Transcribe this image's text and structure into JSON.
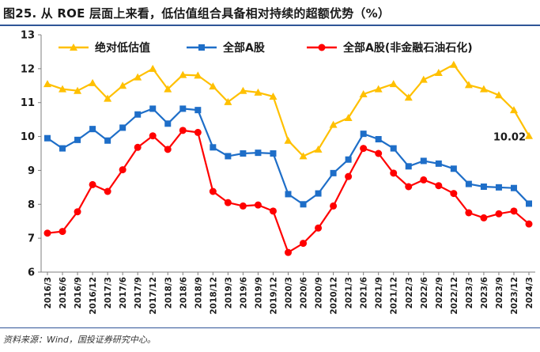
{
  "title": "图25. 从 ROE 层面上来看，低估值组合具备相对持续的超额优势（%）",
  "source": "资料来源：Wind，国投证券研究中心。",
  "chart_data": {
    "type": "line",
    "ylim": [
      6,
      13
    ],
    "yticks": [
      "6",
      "7",
      "8",
      "9",
      "10",
      "11",
      "12",
      "13"
    ],
    "categories": [
      "2016/3",
      "2016/6",
      "2016/9",
      "2016/12",
      "2017/3",
      "2017/6",
      "2017/9",
      "2017/12",
      "2018/3",
      "2018/6",
      "2018/9",
      "2018/12",
      "2019/3",
      "2019/6",
      "2019/9",
      "2019/12",
      "2020/3",
      "2020/6",
      "2020/9",
      "2020/12",
      "2021/3",
      "2021/6",
      "2021/9",
      "2021/12",
      "2022/3",
      "2022/6",
      "2022/9",
      "2022/12",
      "2023/3",
      "2023/6",
      "2023/9",
      "2023/12",
      "2024/3"
    ],
    "series": [
      {
        "name": "绝对低估值",
        "color": "#ffc000",
        "marker": "triangle",
        "values": [
          11.55,
          11.4,
          11.35,
          11.58,
          11.12,
          11.5,
          11.75,
          12.0,
          11.4,
          11.82,
          11.8,
          11.48,
          11.02,
          11.35,
          11.3,
          11.18,
          9.88,
          9.42,
          9.62,
          10.35,
          10.55,
          11.25,
          11.4,
          11.55,
          11.15,
          11.68,
          11.88,
          12.12,
          11.52,
          11.4,
          11.22,
          10.78,
          10.02
        ]
      },
      {
        "name": "全部A股",
        "color": "#1e6ec8",
        "marker": "square",
        "values": [
          9.95,
          9.65,
          9.9,
          10.22,
          9.88,
          10.26,
          10.65,
          10.82,
          10.38,
          10.82,
          10.78,
          9.68,
          9.42,
          9.5,
          9.52,
          9.5,
          8.3,
          8.0,
          8.32,
          8.92,
          9.32,
          10.08,
          9.92,
          9.65,
          9.12,
          9.28,
          9.2,
          9.05,
          8.6,
          8.52,
          8.5,
          8.48,
          8.02
        ]
      },
      {
        "name": "全部A股(非金融石油石化)",
        "color": "#ff0000",
        "marker": "circle",
        "values": [
          7.15,
          7.2,
          7.78,
          8.58,
          8.38,
          9.02,
          9.68,
          10.02,
          9.62,
          10.18,
          10.12,
          8.38,
          8.05,
          7.95,
          7.98,
          7.8,
          6.58,
          6.85,
          7.3,
          7.95,
          8.82,
          9.65,
          9.5,
          8.92,
          8.52,
          8.72,
          8.55,
          8.32,
          7.75,
          7.6,
          7.72,
          7.8,
          7.42
        ]
      }
    ],
    "annotation": "10.02",
    "legend_position": "top"
  }
}
